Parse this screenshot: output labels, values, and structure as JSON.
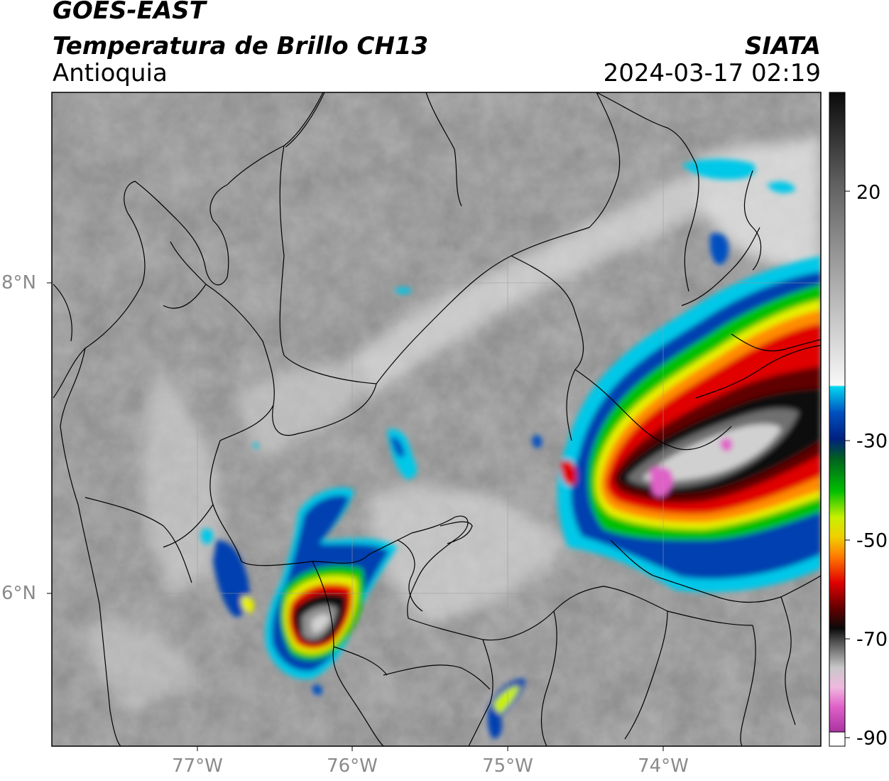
{
  "header": {
    "satellite": "GOES-EAST",
    "product": "Temperatura de Brillo CH13",
    "region": "Antioquia",
    "agency": "SIATA",
    "datetime": "2024-03-17 02:19"
  },
  "map": {
    "lat_labels": [
      "8°N",
      "6°N"
    ],
    "lon_labels": [
      "77°W",
      "76°W",
      "75°W",
      "74°W"
    ]
  },
  "colorbar": {
    "ticks": [
      "20",
      "-30",
      "-50",
      "-70",
      "-90"
    ],
    "colors": {
      "cyan": "#00d8f0",
      "blue": "#0030a0",
      "green": "#00c800",
      "yellow": "#f0f000",
      "orange": "#ff8c00",
      "red": "#e00000",
      "black": "#0a0a0a",
      "pink": "#e060c8",
      "purple": "#902090"
    }
  }
}
